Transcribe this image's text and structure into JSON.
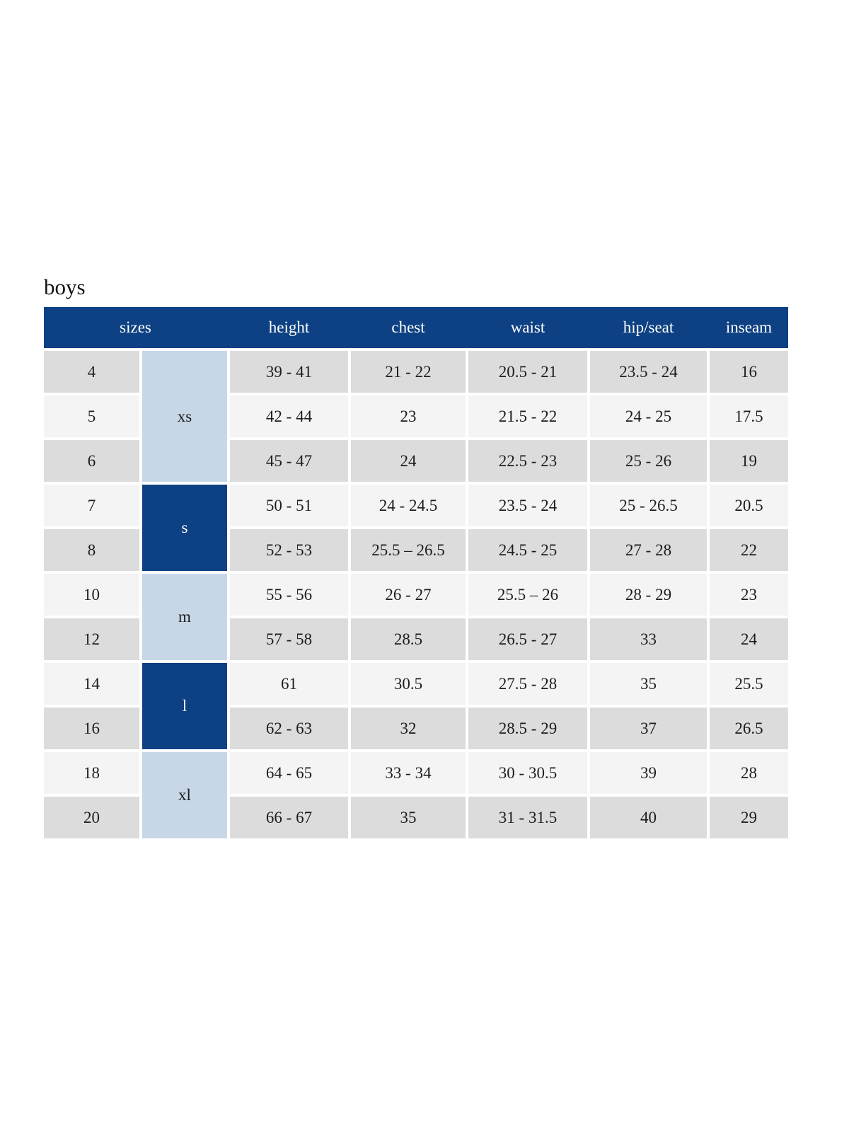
{
  "page": {
    "title": "boys"
  },
  "table": {
    "headers": {
      "sizes": "sizes",
      "height": "height",
      "chest": "chest",
      "waist": "waist",
      "hip_seat": "hip/seat",
      "inseam": "inseam"
    },
    "groups": [
      {
        "label": "xs",
        "rows": 3,
        "style": "light"
      },
      {
        "label": "s",
        "rows": 2,
        "style": "dark"
      },
      {
        "label": "m",
        "rows": 2,
        "style": "light"
      },
      {
        "label": "l",
        "rows": 2,
        "style": "dark"
      },
      {
        "label": "xl",
        "rows": 2,
        "style": "light"
      }
    ],
    "rows": [
      {
        "size": "4",
        "height": "39 - 41",
        "chest": "21 - 22",
        "waist": "20.5 - 21",
        "hip_seat": "23.5 - 24",
        "inseam": "16"
      },
      {
        "size": "5",
        "height": "42 - 44",
        "chest": "23",
        "waist": "21.5 - 22",
        "hip_seat": "24 - 25",
        "inseam": "17.5"
      },
      {
        "size": "6",
        "height": "45 - 47",
        "chest": "24",
        "waist": "22.5 - 23",
        "hip_seat": "25 - 26",
        "inseam": "19"
      },
      {
        "size": "7",
        "height": "50 - 51",
        "chest": "24 - 24.5",
        "waist": "23.5 - 24",
        "hip_seat": "25 - 26.5",
        "inseam": "20.5"
      },
      {
        "size": "8",
        "height": "52 - 53",
        "chest": "25.5 – 26.5",
        "waist": "24.5 - 25",
        "hip_seat": "27 - 28",
        "inseam": "22"
      },
      {
        "size": "10",
        "height": "55 - 56",
        "chest": "26 - 27",
        "waist": "25.5 – 26",
        "hip_seat": "28 - 29",
        "inseam": "23"
      },
      {
        "size": "12",
        "height": "57 - 58",
        "chest": "28.5",
        "waist": "26.5 - 27",
        "hip_seat": "33",
        "inseam": "24"
      },
      {
        "size": "14",
        "height": "61",
        "chest": "30.5",
        "waist": "27.5 - 28",
        "hip_seat": "35",
        "inseam": "25.5"
      },
      {
        "size": "16",
        "height": "62 - 63",
        "chest": "32",
        "waist": "28.5 - 29",
        "hip_seat": "37",
        "inseam": "26.5"
      },
      {
        "size": "18",
        "height": "64 - 65",
        "chest": "33 - 34",
        "waist": "30 - 30.5",
        "hip_seat": "39",
        "inseam": "28"
      },
      {
        "size": "20",
        "height": "66 - 67",
        "chest": "35",
        "waist": "31 - 31.5",
        "hip_seat": "40",
        "inseam": "29"
      }
    ],
    "colors": {
      "header_bg": "#0e4183",
      "header_text": "#ffffff",
      "group_light_bg": "#c7d7e8",
      "group_dark_bg": "#0e4183",
      "row_gray": "#dcdcdc",
      "row_light": "#f4f4f4",
      "text": "#1d1d1d"
    }
  }
}
